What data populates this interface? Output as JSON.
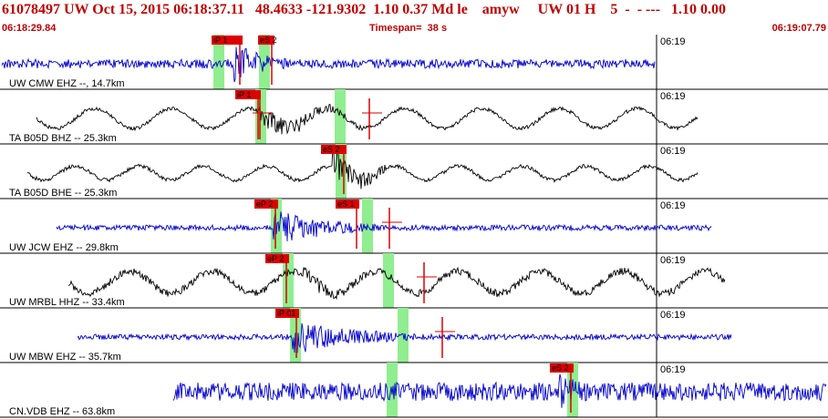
{
  "header": {
    "title": "61078497 UW Oct 15, 2015 06:18:37.11   48.4633 -121.9302  1.10 0.37 Md le    amyw     UW 01 H    5  -  - ---   1.10 0.00",
    "start_time": "06:18:29.84",
    "timespan": "Timespan=  38 s",
    "end_time": "06:19:07.79"
  },
  "tick_label": "06:19",
  "colors": {
    "title": "#c00000",
    "blue_trace": "#0000cc",
    "black_trace": "#000000",
    "pick_box": "#dd0000",
    "window": "#90ee90",
    "grid": "#000000"
  },
  "channels": [
    {
      "label": "UW CMW EHZ --, 14.7km",
      "color": "blue",
      "picks": [
        {
          "label": "iP 1"
        },
        {
          "label": "eS 2"
        }
      ]
    },
    {
      "label": "TA B05D BHZ -- 25.3km",
      "color": "black",
      "picks": [
        {
          "label": "iP 1"
        }
      ]
    },
    {
      "label": "TA B05D BHE -- 25.3km",
      "color": "black",
      "picks": [
        {
          "label": "eS 2"
        }
      ]
    },
    {
      "label": "UW JCW EHZ -- 29.8km",
      "color": "blue",
      "picks": [
        {
          "label": "eP 2"
        },
        {
          "label": "eS 1"
        }
      ]
    },
    {
      "label": "UW MRBL HHZ -- 33.4km",
      "color": "black",
      "picks": [
        {
          "label": "eP 2"
        }
      ]
    },
    {
      "label": "UW MBW EHZ -- 35.7km",
      "color": "blue",
      "picks": [
        {
          "label": "iP 01"
        }
      ]
    },
    {
      "label": "CN.VDB EHZ -- 63.8km",
      "color": "blue",
      "picks": [
        {
          "label": "eS 2"
        }
      ]
    }
  ]
}
